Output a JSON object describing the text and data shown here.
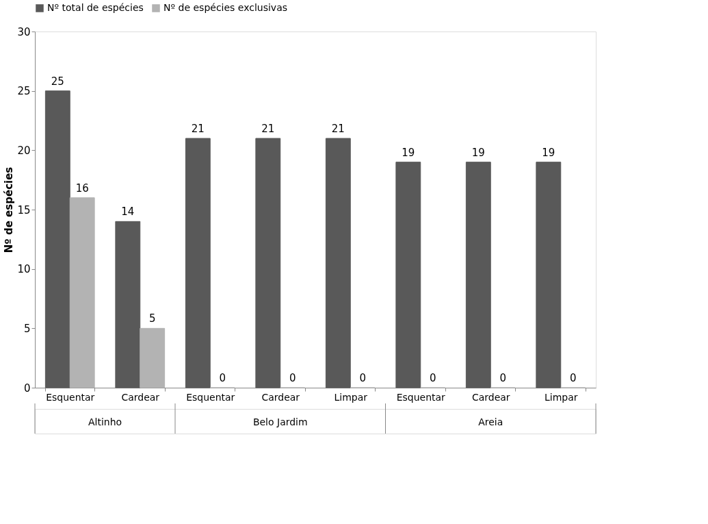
{
  "chart_data": {
    "type": "bar",
    "categories": [
      "Esquentar",
      "Cardear",
      "Esquentar",
      "Cardear",
      "Limpar",
      "Esquentar",
      "Cardear",
      "Limpar"
    ],
    "series": [
      {
        "name": "Nº total de espécies",
        "color": "#595959",
        "values": [
          25,
          14,
          21,
          21,
          21,
          19,
          19,
          19
        ]
      },
      {
        "name": "Nº de espécies exclusivas",
        "color": "#b3b3b3",
        "values": [
          16,
          5,
          0,
          0,
          0,
          0,
          0,
          0
        ]
      }
    ],
    "ylabel": "Nº de espécies",
    "ylim": [
      0,
      30
    ],
    "yticks": [
      0,
      5,
      10,
      15,
      20,
      25,
      30
    ],
    "annotations": [
      "Altinho",
      "Belo Jardim",
      "Areia"
    ],
    "data_labels": true,
    "legend": "top",
    "grid": false
  }
}
